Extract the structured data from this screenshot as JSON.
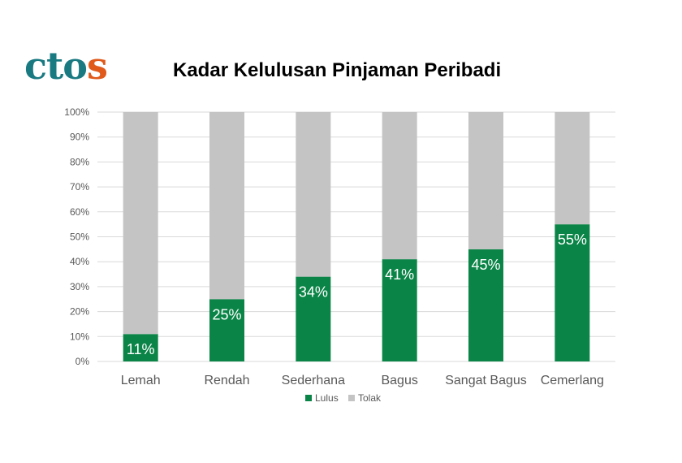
{
  "logo": {
    "letters": [
      "c",
      "t",
      "o",
      "s"
    ],
    "accent_letter_index": 3,
    "primary_color": "#1a7a82",
    "accent_color": "#e05a1b"
  },
  "colors": {
    "lulus": "#0b8547",
    "tolak": "#c4c4c4",
    "grid": "#d9d9d9",
    "axis_text": "#595959"
  },
  "chart_data": {
    "type": "bar",
    "stacked": true,
    "title": "Kadar Kelulusan Pinjaman Peribadi",
    "categories": [
      "Lemah",
      "Rendah",
      "Sederhana",
      "Bagus",
      "Sangat Bagus",
      "Cemerlang"
    ],
    "series": [
      {
        "name": "Lulus",
        "values": [
          11,
          25,
          34,
          41,
          45,
          55
        ],
        "data_labels": [
          "11%",
          "25%",
          "34%",
          "41%",
          "45%",
          "55%"
        ]
      },
      {
        "name": "Tolak",
        "values": [
          89,
          75,
          66,
          59,
          55,
          45
        ]
      }
    ],
    "ylim": [
      0,
      100
    ],
    "y_ticks": [
      "0%",
      "10%",
      "20%",
      "30%",
      "40%",
      "50%",
      "60%",
      "70%",
      "80%",
      "90%",
      "100%"
    ],
    "grid": true,
    "legend": "bottom"
  }
}
